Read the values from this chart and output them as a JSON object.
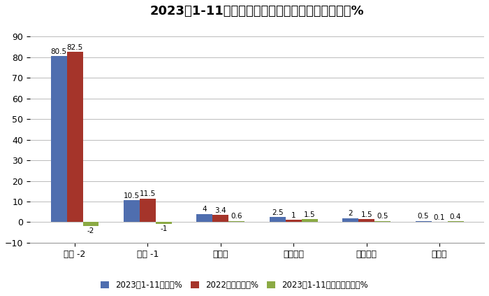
{
  "title": "2023年1-11月各类动力冷藏车占比及占比同比增减%",
  "categories": [
    "柴油 -2",
    "汽油 -1",
    "纯电动",
    "混合动力",
    "燃料电池",
    "燃气类"
  ],
  "series1_label": "2023年1-11月占比%",
  "series2_label": "2022年同期占比%",
  "series3_label": "2023年1-11月占比同比增减%",
  "series1": [
    80.5,
    10.5,
    4.0,
    2.5,
    2.0,
    0.5
  ],
  "series2": [
    82.5,
    11.5,
    3.4,
    1.0,
    1.5,
    0.1
  ],
  "series3": [
    -2.0,
    -1.0,
    0.6,
    1.5,
    0.5,
    0.4
  ],
  "series1_labels": [
    "80.5",
    "10.5",
    "4",
    "2.5",
    "2",
    "0.5"
  ],
  "series2_labels": [
    "82.5",
    "11.5",
    "3.4",
    "1",
    "1.5",
    "0.1"
  ],
  "series3_labels": [
    "-2",
    "-1",
    "0.6",
    "1.5",
    "0.5",
    "0.4"
  ],
  "series1_color": "#4F6EAF",
  "series2_color": "#A5342A",
  "series3_color": "#8BAA44",
  "ylim": [
    -10,
    95
  ],
  "yticks": [
    -10,
    0,
    10,
    20,
    30,
    40,
    50,
    60,
    70,
    80,
    90
  ],
  "bar_width": 0.22,
  "bg_color": "#FFFFFF",
  "grid_color": "#BBBBBB",
  "title_fontsize": 13,
  "legend_fontsize": 8.5,
  "tick_fontsize": 9,
  "label_fontsize": 7.5
}
